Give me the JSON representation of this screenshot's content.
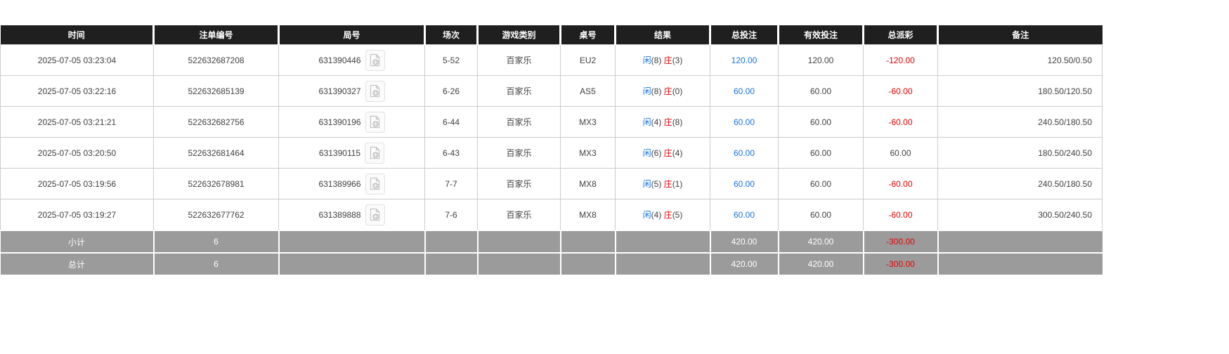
{
  "colors": {
    "header_bg": "#1f1f1f",
    "accent_blue": "#1673e6",
    "negative_red": "#e60000",
    "summary_bg": "#9b9b9b"
  },
  "table": {
    "columns": [
      {
        "key": "time",
        "label": "时间"
      },
      {
        "key": "bet_id",
        "label": "注单编号"
      },
      {
        "key": "round_id",
        "label": "局号"
      },
      {
        "key": "session",
        "label": "场次"
      },
      {
        "key": "game_type",
        "label": "游戏类别"
      },
      {
        "key": "table_no",
        "label": "桌号"
      },
      {
        "key": "result",
        "label": "结果"
      },
      {
        "key": "total_bet",
        "label": "总投注"
      },
      {
        "key": "valid_bet",
        "label": "有效投注"
      },
      {
        "key": "total_payout",
        "label": "总派彩"
      },
      {
        "key": "remark",
        "label": "备注"
      }
    ],
    "rows": [
      {
        "time": "2025-07-05 03:23:04",
        "bet_id": "522632687208",
        "round_id": "631390446",
        "session": "5-52",
        "game_type": "百家乐",
        "table_no": "EU2",
        "result": {
          "player": "闲",
          "player_score": "(8)",
          "banker": "庄",
          "banker_score": "(3)"
        },
        "total_bet": "120.00",
        "valid_bet": "120.00",
        "total_payout": "-120.00",
        "remark": "120.50/0.50"
      },
      {
        "time": "2025-07-05 03:22:16",
        "bet_id": "522632685139",
        "round_id": "631390327",
        "session": "6-26",
        "game_type": "百家乐",
        "table_no": "AS5",
        "result": {
          "player": "闲",
          "player_score": "(8)",
          "banker": "庄",
          "banker_score": "(0)"
        },
        "total_bet": "60.00",
        "valid_bet": "60.00",
        "total_payout": "-60.00",
        "remark": "180.50/120.50"
      },
      {
        "time": "2025-07-05 03:21:21",
        "bet_id": "522632682756",
        "round_id": "631390196",
        "session": "6-44",
        "game_type": "百家乐",
        "table_no": "MX3",
        "result": {
          "player": "闲",
          "player_score": "(4)",
          "banker": "庄",
          "banker_score": "(8)"
        },
        "total_bet": "60.00",
        "valid_bet": "60.00",
        "total_payout": "-60.00",
        "remark": "240.50/180.50"
      },
      {
        "time": "2025-07-05 03:20:50",
        "bet_id": "522632681464",
        "round_id": "631390115",
        "session": "6-43",
        "game_type": "百家乐",
        "table_no": "MX3",
        "result": {
          "player": "闲",
          "player_score": "(6)",
          "banker": "庄",
          "banker_score": "(4)"
        },
        "total_bet": "60.00",
        "valid_bet": "60.00",
        "total_payout": "60.00",
        "remark": "180.50/240.50"
      },
      {
        "time": "2025-07-05 03:19:56",
        "bet_id": "522632678981",
        "round_id": "631389966",
        "session": "7-7",
        "game_type": "百家乐",
        "table_no": "MX8",
        "result": {
          "player": "闲",
          "player_score": "(5)",
          "banker": "庄",
          "banker_score": "(1)"
        },
        "total_bet": "60.00",
        "valid_bet": "60.00",
        "total_payout": "-60.00",
        "remark": "240.50/180.50"
      },
      {
        "time": "2025-07-05 03:19:27",
        "bet_id": "522632677762",
        "round_id": "631389888",
        "session": "7-6",
        "game_type": "百家乐",
        "table_no": "MX8",
        "result": {
          "player": "闲",
          "player_score": "(4)",
          "banker": "庄",
          "banker_score": "(5)"
        },
        "total_bet": "60.00",
        "valid_bet": "60.00",
        "total_payout": "-60.00",
        "remark": "300.50/240.50"
      }
    ],
    "summary_rows": [
      {
        "label": "小计",
        "count": "6",
        "total_bet": "420.00",
        "valid_bet": "420.00",
        "total_payout": "-300.00",
        "remark": ""
      },
      {
        "label": "总计",
        "count": "6",
        "total_bet": "420.00",
        "valid_bet": "420.00",
        "total_payout": "-300.00",
        "remark": ""
      }
    ]
  }
}
